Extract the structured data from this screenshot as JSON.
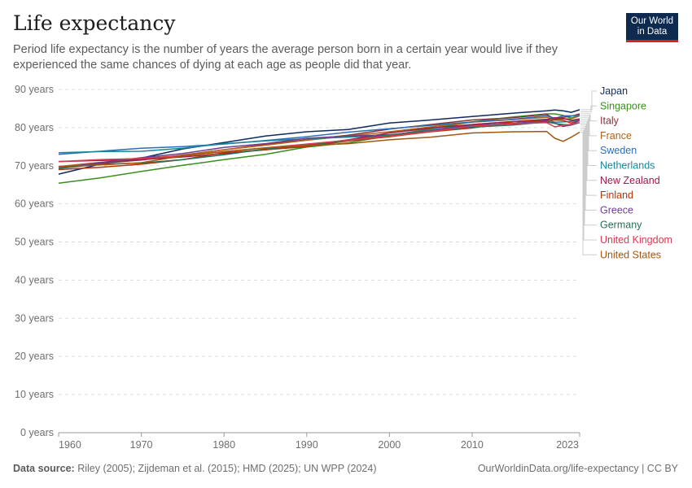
{
  "header": {
    "title": "Life expectancy",
    "subtitle": "Period life expectancy is the number of years the average person born in a certain year would live if they experienced the same chances of dying at each age as people did that year.",
    "logo_line1": "Our World",
    "logo_line2": "in Data"
  },
  "footer": {
    "source_label": "Data source:",
    "source_text": "Riley (2005); Zijdeman et al. (2015); HMD (2025); UN WPP (2024)",
    "link_text": "OurWorldinData.org/life-expectancy | CC BY"
  },
  "colors": {
    "grid": "#dddddd",
    "axis": "#999999",
    "tick_text": "#6e6e6e",
    "logo_bg": "#0f2a4f",
    "logo_accent": "#ce261e"
  },
  "chart_data": {
    "type": "line",
    "title": "Life expectancy",
    "xlim": [
      1960,
      2023
    ],
    "ylim": [
      0,
      90
    ],
    "grid": "horizontal dashed",
    "legend_position": "right",
    "x_ticks": [
      {
        "value": 1960,
        "label": "1960"
      },
      {
        "value": 1970,
        "label": "1970"
      },
      {
        "value": 1980,
        "label": "1980"
      },
      {
        "value": 1990,
        "label": "1990"
      },
      {
        "value": 2000,
        "label": "2000"
      },
      {
        "value": 2010,
        "label": "2010"
      },
      {
        "value": 2023,
        "label": "2023"
      }
    ],
    "y_ticks": [
      {
        "value": 0,
        "label": "0 years"
      },
      {
        "value": 10,
        "label": "10 years"
      },
      {
        "value": 20,
        "label": "20 years"
      },
      {
        "value": 30,
        "label": "30 years"
      },
      {
        "value": 40,
        "label": "40 years"
      },
      {
        "value": 50,
        "label": "50 years"
      },
      {
        "value": 60,
        "label": "60 years"
      },
      {
        "value": 70,
        "label": "70 years"
      },
      {
        "value": 80,
        "label": "80 years"
      },
      {
        "value": 90,
        "label": "90 years"
      }
    ],
    "series": [
      {
        "name": "Japan",
        "color": "#0f2a5e",
        "points": [
          [
            1960,
            67.8
          ],
          [
            1965,
            70.4
          ],
          [
            1970,
            72.0
          ],
          [
            1975,
            74.4
          ],
          [
            1980,
            76.1
          ],
          [
            1985,
            77.8
          ],
          [
            1990,
            78.9
          ],
          [
            1995,
            79.5
          ],
          [
            2000,
            81.2
          ],
          [
            2005,
            82.0
          ],
          [
            2010,
            82.9
          ],
          [
            2015,
            83.8
          ],
          [
            2019,
            84.4
          ],
          [
            2020,
            84.6
          ],
          [
            2021,
            84.4
          ],
          [
            2022,
            84.0
          ],
          [
            2023,
            84.7
          ]
        ]
      },
      {
        "name": "Singapore",
        "color": "#3a8e1f",
        "points": [
          [
            1960,
            65.4
          ],
          [
            1965,
            66.8
          ],
          [
            1970,
            68.5
          ],
          [
            1975,
            70.1
          ],
          [
            1980,
            71.6
          ],
          [
            1985,
            73.0
          ],
          [
            1990,
            74.9
          ],
          [
            1995,
            76.0
          ],
          [
            2000,
            77.9
          ],
          [
            2005,
            79.7
          ],
          [
            2010,
            81.5
          ],
          [
            2015,
            82.8
          ],
          [
            2019,
            83.6
          ],
          [
            2020,
            83.6
          ],
          [
            2021,
            83.2
          ],
          [
            2022,
            82.5
          ],
          [
            2023,
            83.3
          ]
        ]
      },
      {
        "name": "Italy",
        "color": "#883039",
        "points": [
          [
            1960,
            69.4
          ],
          [
            1965,
            70.6
          ],
          [
            1970,
            71.5
          ],
          [
            1975,
            72.8
          ],
          [
            1980,
            74.2
          ],
          [
            1985,
            75.6
          ],
          [
            1990,
            76.8
          ],
          [
            1995,
            78.0
          ],
          [
            2000,
            79.6
          ],
          [
            2005,
            80.8
          ],
          [
            2010,
            82.0
          ],
          [
            2015,
            82.6
          ],
          [
            2019,
            83.5
          ],
          [
            2020,
            82.2
          ],
          [
            2021,
            82.7
          ],
          [
            2022,
            83.0
          ],
          [
            2023,
            83.6
          ]
        ]
      },
      {
        "name": "France",
        "color": "#b16214",
        "points": [
          [
            1960,
            69.8
          ],
          [
            1965,
            70.9
          ],
          [
            1970,
            71.9
          ],
          [
            1975,
            72.7
          ],
          [
            1980,
            74.2
          ],
          [
            1985,
            75.4
          ],
          [
            1990,
            76.7
          ],
          [
            1995,
            77.8
          ],
          [
            2000,
            78.9
          ],
          [
            2005,
            80.2
          ],
          [
            2010,
            81.4
          ],
          [
            2015,
            82.1
          ],
          [
            2019,
            82.7
          ],
          [
            2020,
            82.0
          ],
          [
            2021,
            82.3
          ],
          [
            2022,
            82.3
          ],
          [
            2023,
            83.1
          ]
        ]
      },
      {
        "name": "Sweden",
        "color": "#2c6db4",
        "points": [
          [
            1960,
            73.0
          ],
          [
            1965,
            73.8
          ],
          [
            1970,
            74.6
          ],
          [
            1975,
            75.0
          ],
          [
            1980,
            75.7
          ],
          [
            1985,
            76.6
          ],
          [
            1990,
            77.6
          ],
          [
            1995,
            78.8
          ],
          [
            2000,
            79.7
          ],
          [
            2005,
            80.6
          ],
          [
            2010,
            81.5
          ],
          [
            2015,
            82.2
          ],
          [
            2019,
            83.1
          ],
          [
            2020,
            82.4
          ],
          [
            2021,
            83.1
          ],
          [
            2022,
            83.1
          ],
          [
            2023,
            83.3
          ]
        ]
      },
      {
        "name": "Netherlands",
        "color": "#18869a",
        "points": [
          [
            1960,
            73.4
          ],
          [
            1965,
            73.7
          ],
          [
            1970,
            73.8
          ],
          [
            1975,
            74.6
          ],
          [
            1980,
            75.8
          ],
          [
            1985,
            76.5
          ],
          [
            1990,
            77.1
          ],
          [
            1995,
            77.5
          ],
          [
            2000,
            78.0
          ],
          [
            2005,
            79.4
          ],
          [
            2010,
            80.8
          ],
          [
            2015,
            81.6
          ],
          [
            2019,
            82.2
          ],
          [
            2020,
            81.4
          ],
          [
            2021,
            81.5
          ],
          [
            2022,
            81.6
          ],
          [
            2023,
            82.0
          ]
        ]
      },
      {
        "name": "New Zealand",
        "color": "#9b1c4d",
        "points": [
          [
            1960,
            71.1
          ],
          [
            1965,
            71.4
          ],
          [
            1970,
            71.6
          ],
          [
            1975,
            72.3
          ],
          [
            1980,
            73.2
          ],
          [
            1985,
            74.2
          ],
          [
            1990,
            75.4
          ],
          [
            1995,
            76.8
          ],
          [
            2000,
            78.6
          ],
          [
            2005,
            79.9
          ],
          [
            2010,
            80.8
          ],
          [
            2015,
            81.6
          ],
          [
            2019,
            82.1
          ],
          [
            2020,
            82.6
          ],
          [
            2021,
            82.4
          ],
          [
            2022,
            81.9
          ],
          [
            2023,
            82.3
          ]
        ]
      },
      {
        "name": "Finland",
        "color": "#b13507",
        "points": [
          [
            1960,
            69.0
          ],
          [
            1965,
            69.6
          ],
          [
            1970,
            70.4
          ],
          [
            1975,
            71.6
          ],
          [
            1980,
            73.4
          ],
          [
            1985,
            74.2
          ],
          [
            1990,
            75.0
          ],
          [
            1995,
            76.5
          ],
          [
            2000,
            77.6
          ],
          [
            2005,
            78.9
          ],
          [
            2010,
            79.9
          ],
          [
            2015,
            81.5
          ],
          [
            2019,
            81.9
          ],
          [
            2020,
            82.0
          ],
          [
            2021,
            81.9
          ],
          [
            2022,
            81.2
          ],
          [
            2023,
            81.8
          ]
        ]
      },
      {
        "name": "Greece",
        "color": "#6d3e91",
        "points": [
          [
            1960,
            69.4
          ],
          [
            1965,
            70.8
          ],
          [
            1970,
            72.1
          ],
          [
            1975,
            73.2
          ],
          [
            1980,
            74.8
          ],
          [
            1985,
            75.8
          ],
          [
            1990,
            77.2
          ],
          [
            1995,
            77.8
          ],
          [
            2000,
            78.1
          ],
          [
            2005,
            79.2
          ],
          [
            2010,
            80.6
          ],
          [
            2015,
            81.1
          ],
          [
            2019,
            81.7
          ],
          [
            2020,
            81.2
          ],
          [
            2021,
            80.3
          ],
          [
            2022,
            80.7
          ],
          [
            2023,
            81.9
          ]
        ]
      },
      {
        "name": "Germany",
        "color": "#286f57",
        "points": [
          [
            1960,
            69.3
          ],
          [
            1965,
            70.4
          ],
          [
            1970,
            70.7
          ],
          [
            1975,
            71.6
          ],
          [
            1980,
            72.9
          ],
          [
            1985,
            74.4
          ],
          [
            1990,
            75.4
          ],
          [
            1995,
            76.6
          ],
          [
            2000,
            78.1
          ],
          [
            2005,
            79.1
          ],
          [
            2010,
            80.1
          ],
          [
            2015,
            80.7
          ],
          [
            2019,
            81.5
          ],
          [
            2020,
            81.1
          ],
          [
            2021,
            80.8
          ],
          [
            2022,
            80.7
          ],
          [
            2023,
            81.3
          ]
        ]
      },
      {
        "name": "United Kingdom",
        "color": "#d73c50",
        "points": [
          [
            1960,
            71.1
          ],
          [
            1965,
            71.6
          ],
          [
            1970,
            71.9
          ],
          [
            1975,
            72.6
          ],
          [
            1980,
            73.7
          ],
          [
            1985,
            74.7
          ],
          [
            1990,
            75.7
          ],
          [
            1995,
            76.7
          ],
          [
            2000,
            77.8
          ],
          [
            2005,
            79.0
          ],
          [
            2010,
            80.4
          ],
          [
            2015,
            81.0
          ],
          [
            2019,
            81.3
          ],
          [
            2020,
            80.2
          ],
          [
            2021,
            80.6
          ],
          [
            2022,
            80.9
          ],
          [
            2023,
            81.3
          ]
        ]
      },
      {
        "name": "United States",
        "color": "#a2560e",
        "points": [
          [
            1960,
            69.8
          ],
          [
            1965,
            70.2
          ],
          [
            1970,
            70.8
          ],
          [
            1975,
            72.6
          ],
          [
            1980,
            73.7
          ],
          [
            1985,
            74.7
          ],
          [
            1990,
            75.3
          ],
          [
            1995,
            75.8
          ],
          [
            2000,
            76.8
          ],
          [
            2005,
            77.5
          ],
          [
            2010,
            78.6
          ],
          [
            2015,
            78.9
          ],
          [
            2019,
            79.0
          ],
          [
            2020,
            77.2
          ],
          [
            2021,
            76.4
          ],
          [
            2022,
            77.5
          ],
          [
            2023,
            78.8
          ]
        ]
      }
    ]
  }
}
